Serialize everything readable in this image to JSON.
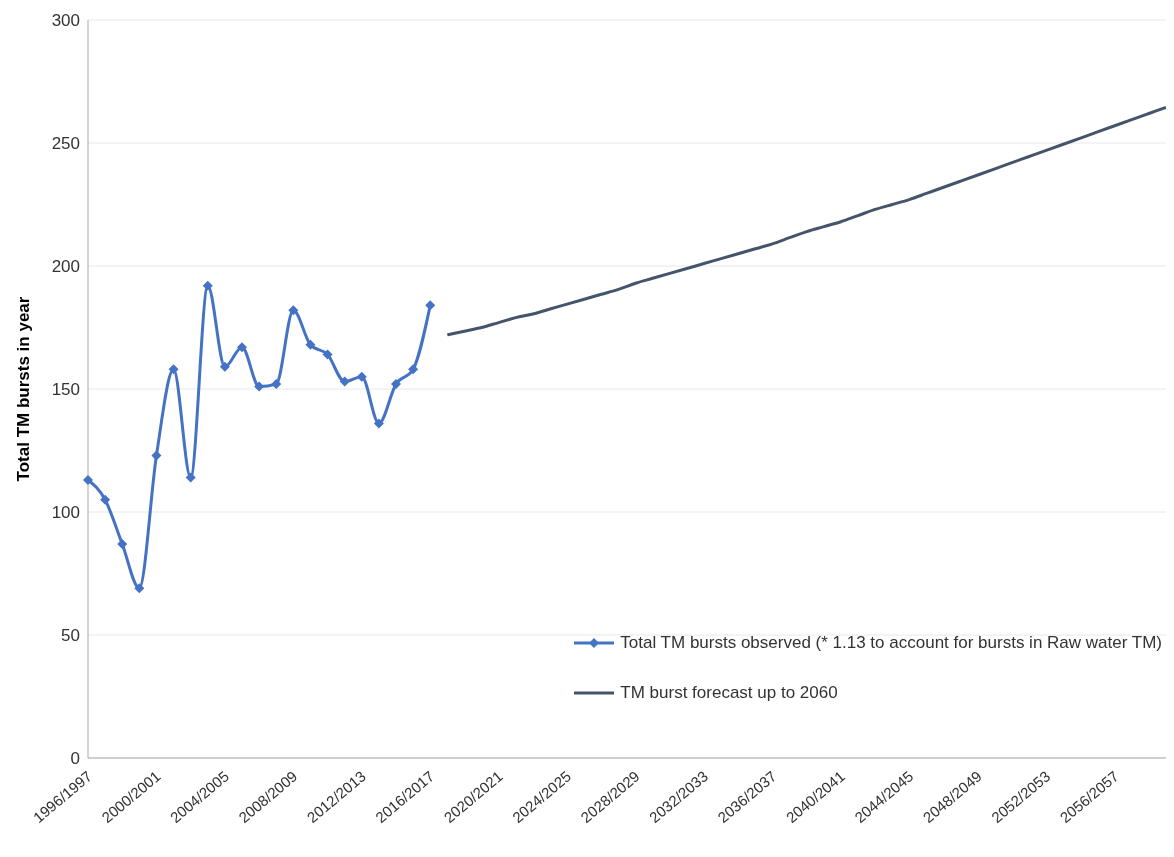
{
  "chart_data": {
    "type": "line",
    "ylabel": "Total TM bursts in year",
    "categories": [
      "1996/1997",
      null,
      null,
      null,
      "2000/2001",
      null,
      null,
      null,
      "2004/2005",
      null,
      null,
      null,
      "2008/2009",
      null,
      null,
      null,
      "2012/2013",
      null,
      null,
      null,
      "2016/2017",
      null,
      null,
      null,
      "2020/2021",
      null,
      null,
      null,
      "2024/2025",
      null,
      null,
      null,
      "2028/2029",
      null,
      null,
      null,
      "2032/2033",
      null,
      null,
      null,
      "2036/2037",
      null,
      null,
      null,
      "2040/2041",
      null,
      null,
      null,
      "2044/2045",
      null,
      null,
      null,
      "2048/2049",
      null,
      null,
      null,
      "2052/2053",
      null,
      null,
      null,
      "2056/2057",
      null,
      null,
      null
    ],
    "series": [
      {
        "name": "Total TM bursts observed (* 1.13 to account for bursts in Raw water TM)",
        "color": "#4472c4",
        "marker": "diamond",
        "values": [
          113,
          105,
          87,
          69,
          123,
          158,
          114,
          192,
          159,
          167,
          151,
          152,
          182,
          168,
          164,
          153,
          155,
          136,
          152,
          158,
          184,
          null,
          null,
          null,
          null,
          null,
          null,
          null,
          null,
          null,
          null,
          null,
          null,
          null,
          null,
          null,
          null,
          null,
          null,
          null,
          null,
          null,
          null,
          null,
          null,
          null,
          null,
          null,
          null,
          null,
          null,
          null,
          null,
          null,
          null,
          null,
          null,
          null,
          null,
          null,
          null,
          null,
          null,
          null
        ]
      },
      {
        "name": "TM burst forecast up to 2060",
        "color": "#44546a",
        "marker": "none",
        "values": [
          null,
          null,
          null,
          null,
          null,
          null,
          null,
          null,
          null,
          null,
          null,
          null,
          null,
          null,
          null,
          null,
          null,
          null,
          null,
          null,
          null,
          172,
          173.5,
          175,
          177,
          179,
          180.5,
          182.5,
          184.5,
          186.5,
          188.5,
          190.5,
          193,
          195,
          197,
          199,
          201,
          203,
          205,
          207,
          209,
          211.5,
          214,
          216,
          218,
          220.5,
          223,
          225,
          227,
          229.5,
          232,
          234.5,
          237,
          239.5,
          242,
          244.5,
          247,
          249.5,
          252,
          254.5,
          257,
          259.5,
          262,
          264.5
        ]
      }
    ],
    "ylim": [
      0,
      300
    ],
    "yticks": [
      0,
      50,
      100,
      150,
      200,
      250,
      300
    ],
    "grid": "y",
    "legend": "bottom right"
  }
}
